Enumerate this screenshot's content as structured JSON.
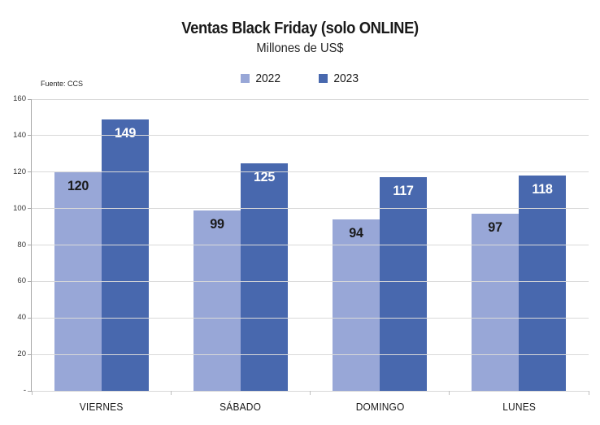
{
  "header": {
    "title": "Ventas Black Friday (solo ONLINE)",
    "subtitle": "Millones de US$",
    "source": "Fuente: CCS"
  },
  "chart_data": {
    "type": "bar",
    "title": "Ventas Black Friday (solo ONLINE)",
    "subtitle": "Millones de US$",
    "source": "Fuente: CCS",
    "categories": [
      "VIERNES",
      "SÁBADO",
      "DOMINGO",
      "LUNES"
    ],
    "series": [
      {
        "name": "2022",
        "values": [
          120,
          99,
          94,
          97
        ],
        "color": "#98A7D7",
        "label_color": "#1a1a1a"
      },
      {
        "name": "2023",
        "values": [
          149,
          125,
          117,
          118
        ],
        "color": "#4868AE",
        "label_color": "#ffffff"
      }
    ],
    "xlabel": "",
    "ylabel": "",
    "ylim": [
      0,
      160
    ],
    "ytick_step": 20,
    "ytick_labels": [
      "-",
      "20",
      "40",
      "60",
      "80",
      "100",
      "120",
      "140",
      "160"
    ],
    "grid": true,
    "legend_position": "top-center",
    "colors": {
      "gridline": "#d9d9d9",
      "axis": "#a6a6a6",
      "background": "#ffffff"
    }
  }
}
